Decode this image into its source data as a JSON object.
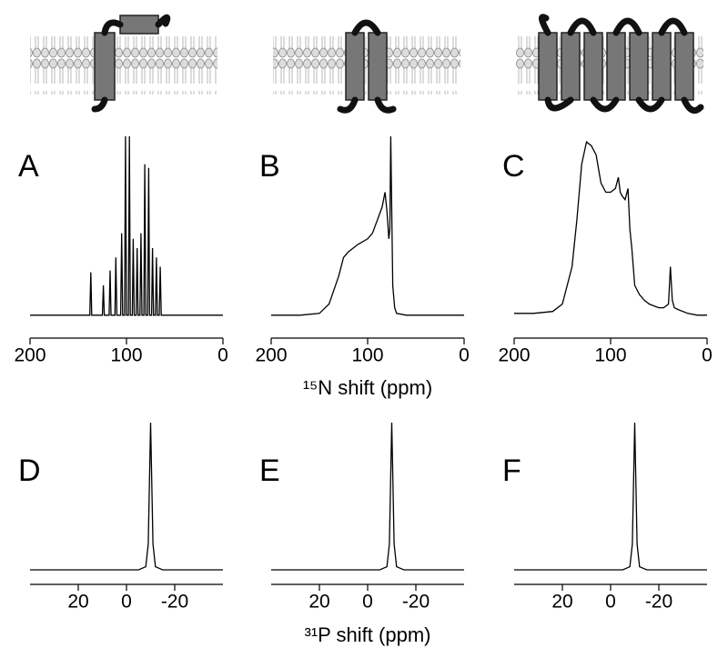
{
  "chart_data": [
    {
      "type": "line",
      "label": "A",
      "color": "#000000",
      "xlim": [
        200,
        0
      ],
      "xticks": [
        200,
        100,
        0
      ],
      "ylim": [
        0,
        100
      ],
      "x": [
        200,
        138,
        137,
        136,
        125,
        124,
        123,
        118,
        117,
        116,
        112,
        111,
        110,
        106,
        105,
        104,
        102,
        101,
        100,
        98,
        97,
        96,
        94,
        93,
        92,
        90,
        89,
        88,
        86,
        85,
        84,
        82,
        81,
        80,
        78,
        77,
        76,
        74,
        73,
        72,
        70,
        69,
        68,
        66,
        65,
        64,
        0
      ],
      "values": [
        4,
        4,
        27,
        4,
        4,
        20,
        4,
        4,
        28,
        4,
        4,
        35,
        4,
        4,
        48,
        4,
        4,
        100,
        4,
        4,
        100,
        4,
        4,
        45,
        4,
        4,
        40,
        4,
        4,
        48,
        4,
        4,
        85,
        4,
        4,
        83,
        4,
        4,
        40,
        4,
        4,
        35,
        4,
        4,
        30,
        4,
        4
      ]
    },
    {
      "type": "line",
      "label": "B",
      "color": "#000000",
      "xlim": [
        200,
        0
      ],
      "xticks": [
        200,
        100,
        0
      ],
      "ylim": [
        0,
        100
      ],
      "xlabel": "¹⁵N shift (ppm)",
      "x": [
        200,
        170,
        150,
        140,
        130,
        125,
        120,
        115,
        110,
        100,
        95,
        90,
        85,
        82,
        80,
        78,
        77,
        76,
        75,
        74,
        72,
        70,
        60,
        40,
        20,
        0
      ],
      "values": [
        4,
        4,
        5,
        10,
        25,
        35,
        38,
        40,
        42,
        45,
        48,
        55,
        62,
        70,
        60,
        45,
        50,
        100,
        60,
        20,
        8,
        5,
        4,
        4,
        4,
        4
      ]
    },
    {
      "type": "line",
      "label": "C",
      "color": "#000000",
      "xlim": [
        200,
        0
      ],
      "xticks": [
        200,
        100,
        0
      ],
      "ylim": [
        0,
        100
      ],
      "x": [
        200,
        180,
        160,
        150,
        140,
        135,
        130,
        125,
        120,
        115,
        110,
        105,
        100,
        95,
        92,
        90,
        88,
        85,
        82,
        80,
        78,
        75,
        70,
        65,
        60,
        55,
        50,
        45,
        40,
        38,
        36,
        34,
        30,
        20,
        10,
        0
      ],
      "values": [
        5,
        5,
        6,
        10,
        30,
        55,
        85,
        97,
        95,
        90,
        75,
        70,
        70,
        72,
        78,
        70,
        68,
        66,
        72,
        50,
        40,
        20,
        15,
        12,
        10,
        9,
        8,
        8,
        10,
        30,
        12,
        8,
        7,
        5,
        4,
        4
      ]
    },
    {
      "type": "line",
      "label": "D",
      "color": "#000000",
      "xlim": [
        40,
        -40
      ],
      "xticks": [
        20,
        0,
        -20
      ],
      "ylim": [
        0,
        100
      ],
      "x": [
        40,
        -5,
        -8,
        -9,
        -10,
        -11,
        -12,
        -15,
        -40
      ],
      "values": [
        3,
        3,
        5,
        20,
        100,
        20,
        5,
        3,
        3
      ]
    },
    {
      "type": "line",
      "label": "E",
      "color": "#000000",
      "xlim": [
        40,
        -40
      ],
      "xticks": [
        20,
        0,
        -20
      ],
      "ylim": [
        0,
        100
      ],
      "xlabel": "³¹P shift (ppm)",
      "x": [
        40,
        -5,
        -8,
        -9,
        -10,
        -11,
        -12,
        -15,
        -40
      ],
      "values": [
        3,
        3,
        5,
        20,
        100,
        20,
        5,
        3,
        3
      ]
    },
    {
      "type": "line",
      "label": "F",
      "color": "#000000",
      "xlim": [
        40,
        -40
      ],
      "xticks": [
        20,
        0,
        -20
      ],
      "ylim": [
        0,
        100
      ],
      "x": [
        40,
        -5,
        -8,
        -9,
        -10,
        -11,
        -12,
        -15,
        -40
      ],
      "values": [
        3,
        3,
        5,
        20,
        100,
        20,
        5,
        3,
        3
      ]
    }
  ]
}
